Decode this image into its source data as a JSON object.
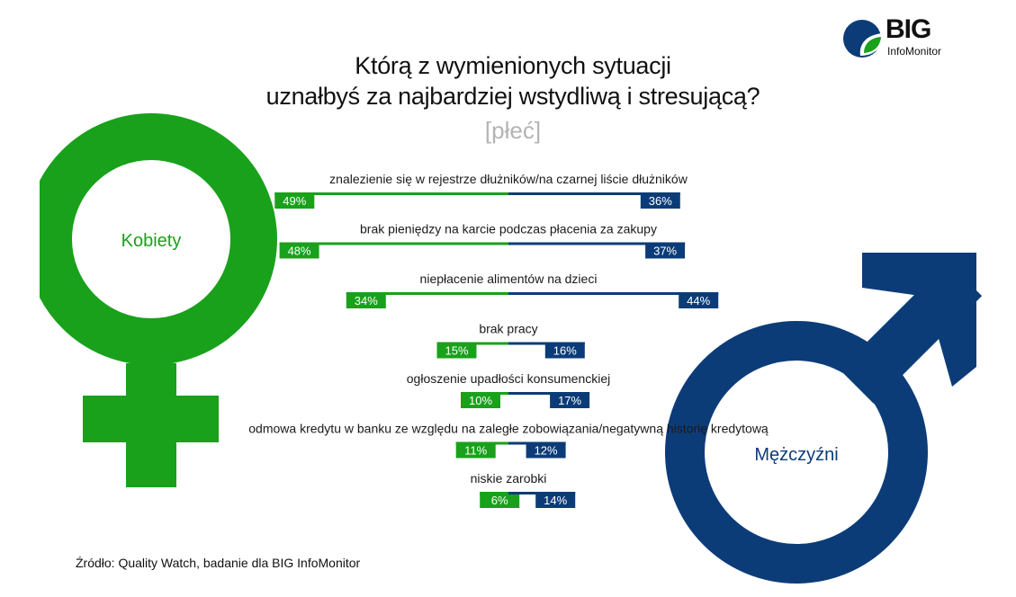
{
  "title_line1": "Którą z wymienionych sytuacji",
  "title_line2": "uznałbyś za najbardziej wstydliwą i stresującą?",
  "subtitle": "[płeć]",
  "logo": {
    "big": "BIG",
    "sub": "InfoMonitor"
  },
  "source": "Źródło: Quality Watch, badanie dla BIG InfoMonitor",
  "colors": {
    "female": "#19a11b",
    "male": "#0c3c78"
  },
  "chart_data": {
    "type": "bar",
    "orientation": "horizontal-diverging",
    "categories": [
      "znalezienie się w rejestrze dłużników/na czarnej liście dłużników",
      "brak pieniędzy na karcie podczas płacenia za zakupy",
      "niepłacenie alimentów na dzieci",
      "brak pracy",
      "ogłoszenie upadłości konsumenckiej",
      "odmowa kredytu w banku ze względu na zaległe zobowiązania/negatywną historię kredytową",
      "niskie zarobki"
    ],
    "series": [
      {
        "name": "Kobiety",
        "values": [
          49,
          48,
          34,
          15,
          10,
          11,
          6
        ],
        "labels": [
          "49%",
          "48%",
          "34%",
          "15%",
          "10%",
          "11%",
          "6%"
        ]
      },
      {
        "name": "Mężczyźni",
        "values": [
          36,
          37,
          44,
          16,
          17,
          12,
          14
        ],
        "labels": [
          "36%",
          "37%",
          "44%",
          "16%",
          "17%",
          "12%",
          "14%"
        ]
      }
    ],
    "unit": "%"
  }
}
